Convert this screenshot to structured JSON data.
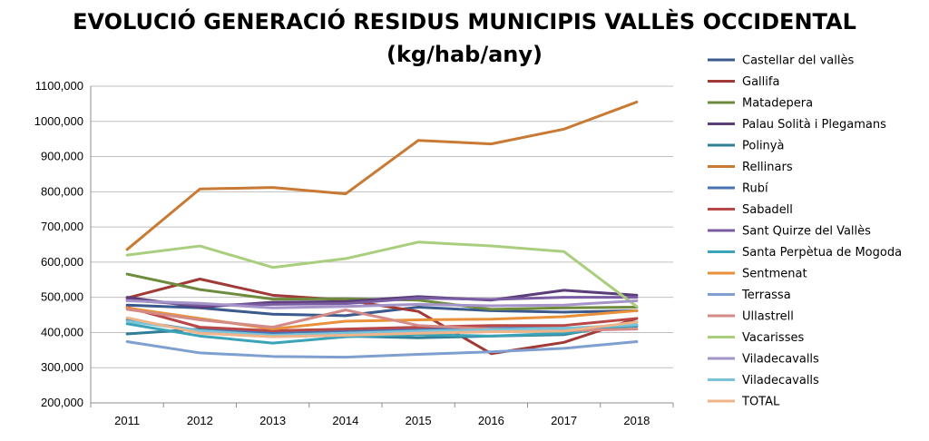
{
  "chart_data": {
    "type": "line",
    "title_line1": "EVOLUCIÓ GENERACIÓ RESIDUS MUNICIPIS VALLÈS OCCIDENTAL",
    "title_line2": "(kg/hab/any)",
    "xlabel": "",
    "ylabel": "",
    "categories": [
      "2011",
      "2012",
      "2013",
      "2014",
      "2015",
      "2016",
      "2017",
      "2018"
    ],
    "ylim": [
      200000,
      1100000
    ],
    "yticks": [
      200000,
      300000,
      400000,
      500000,
      600000,
      700000,
      800000,
      900000,
      1000000,
      1100000
    ],
    "ytick_labels": [
      "200,000",
      "300,000",
      "400,000",
      "500,000",
      "600,000",
      "700,000",
      "800,000",
      "900,000",
      "1000,000",
      "1100,000"
    ],
    "grid": true,
    "legend_position": "right",
    "series": [
      {
        "name": "Castellar del vallès",
        "color": "#3a5a8c",
        "values": [
          478000,
          470000,
          452000,
          448000,
          472000,
          462000,
          458000,
          462000
        ]
      },
      {
        "name": "Gallifa",
        "color": "#a03a36",
        "values": [
          498000,
          552000,
          506000,
          492000,
          460000,
          340000,
          372000,
          440000
        ]
      },
      {
        "name": "Matadepera",
        "color": "#6e8b3d",
        "values": [
          566000,
          522000,
          495000,
          496000,
          492000,
          466000,
          470000,
          472000
        ]
      },
      {
        "name": "Palau Solità i Plegamans",
        "color": "#5b3d7a",
        "values": [
          500000,
          472000,
          486000,
          488000,
          502000,
          492000,
          520000,
          506000
        ]
      },
      {
        "name": "Polinyà",
        "color": "#2f7f96",
        "values": [
          396000,
          410000,
          395000,
          390000,
          385000,
          390000,
          394000,
          430000
        ]
      },
      {
        "name": "Rellinars",
        "color": "#c87a34",
        "values": [
          636000,
          808000,
          812000,
          794000,
          946000,
          936000,
          978000,
          1055000
        ]
      },
      {
        "name": "Rubí",
        "color": "#4a73b5",
        "values": [
          436000,
          405000,
          400000,
          405000,
          410000,
          412000,
          412000,
          418000
        ]
      },
      {
        "name": "Sabadell",
        "color": "#b84848",
        "values": [
          472000,
          415000,
          405000,
          410000,
          415000,
          420000,
          420000,
          440000
        ]
      },
      {
        "name": "Sant Quirze del Vallès",
        "color": "#7a5ca3",
        "values": [
          492000,
          478000,
          480000,
          482000,
          498000,
          494000,
          500000,
          500000
        ]
      },
      {
        "name": "Santa Perpètua de Mogoda",
        "color": "#3ba3b8",
        "values": [
          425000,
          390000,
          370000,
          388000,
          394000,
          390000,
          398000,
          420000
        ]
      },
      {
        "name": "Sentmenat",
        "color": "#e8913a",
        "values": [
          470000,
          440000,
          410000,
          432000,
          436000,
          438000,
          445000,
          462000
        ]
      },
      {
        "name": "Terrassa",
        "color": "#7f9fd0",
        "values": [
          374000,
          342000,
          332000,
          330000,
          338000,
          345000,
          355000,
          374000
        ]
      },
      {
        "name": "Ullastrell",
        "color": "#d48a86",
        "values": [
          466000,
          436000,
          415000,
          464000,
          420000,
          410000,
          405000,
          410000
        ]
      },
      {
        "name": "Vacarisses",
        "color": "#a9cf7e",
        "values": [
          620000,
          646000,
          585000,
          610000,
          657000,
          646000,
          630000,
          474000
        ]
      },
      {
        "name": "Viladecavalls",
        "color": "#a594c8",
        "values": [
          490000,
          483000,
          470000,
          474000,
          480000,
          476000,
          478000,
          490000
        ]
      },
      {
        "name": "Viladecavalls",
        "color": "#79c4d8",
        "values": [
          432000,
          405000,
          392000,
          398000,
          404000,
          408000,
          412000,
          422000
        ]
      },
      {
        "name": "TOTAL",
        "color": "#f0b48a",
        "values": [
          442000,
          398000,
          388000,
          392000,
          398000,
          402000,
          404000,
          430000
        ]
      }
    ]
  }
}
